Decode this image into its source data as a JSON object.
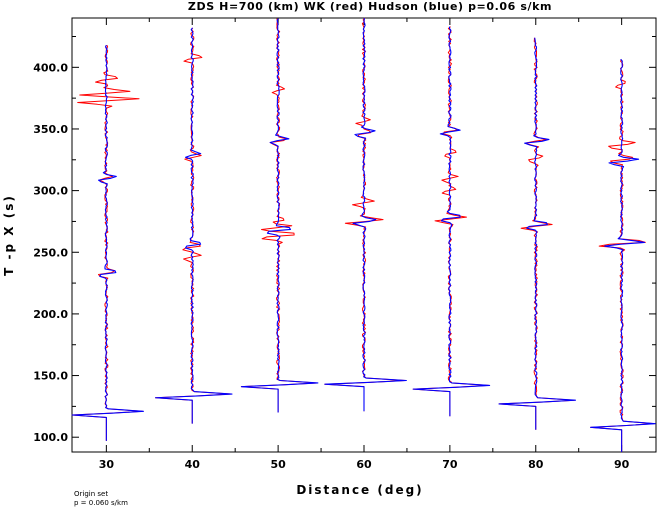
{
  "chart_data": {
    "type": "line",
    "title": "ZDS H=700 (km) WK (red) Hudson (blue) p=0.06 s/km",
    "xlabel": "Distance (deg)",
    "ylabel": "T -p X (s)",
    "xlim": [
      26,
      94
    ],
    "ylim": [
      88,
      440
    ],
    "x_ticks": [
      "30",
      "40",
      "50",
      "60",
      "70",
      "80",
      "90"
    ],
    "y_ticks": [
      "100.0",
      "150.0",
      "200.0",
      "250.0",
      "300.0",
      "350.0",
      "400.0"
    ],
    "series": [
      {
        "name": "WK",
        "color": "#ff0000"
      },
      {
        "name": "Hudson",
        "color": "#0000ff"
      }
    ],
    "traces": [
      {
        "distance": 30,
        "t_start": 97,
        "t_main": 120,
        "t_end": 418,
        "amp_main": 4.2,
        "red_pulses": [
          [
            233,
            1.2
          ],
          [
            310,
            1.0
          ],
          [
            373,
            4.2
          ],
          [
            379,
            3.5
          ],
          [
            390,
            1.8
          ],
          [
            411,
            0.4
          ]
        ],
        "blue_pulses": [
          [
            233,
            1.5
          ],
          [
            310,
            1.4
          ]
        ]
      },
      {
        "distance": 40,
        "t_start": 111,
        "t_main": 134,
        "t_end": 432,
        "amp_main": 4.5,
        "red_pulses": [
          [
            246,
            1.5
          ],
          [
            254,
            1.5
          ],
          [
            327,
            1.2
          ],
          [
            407,
            1.4
          ]
        ],
        "blue_pulses": [
          [
            256,
            1.5
          ],
          [
            329,
            1.2
          ]
        ]
      },
      {
        "distance": 50,
        "t_start": 120,
        "t_main": 143,
        "t_end": 440,
        "amp_main": 4.5,
        "red_pulses": [
          [
            263,
            2.8
          ],
          [
            270,
            2.3
          ],
          [
            340,
            1.2
          ],
          [
            381,
            1.0
          ],
          [
            275,
            1.0
          ]
        ],
        "blue_pulses": [
          [
            268,
            2.2
          ],
          [
            341,
            1.5
          ]
        ]
      },
      {
        "distance": 60,
        "t_start": 121,
        "t_main": 145,
        "t_end": 440,
        "amp_main": 4.8,
        "red_pulses": [
          [
            275,
            2.7
          ],
          [
            290,
            1.5
          ],
          [
            346,
            1.2
          ],
          [
            356,
            1.0
          ]
        ],
        "blue_pulses": [
          [
            275,
            1.8
          ],
          [
            347,
            1.5
          ]
        ]
      },
      {
        "distance": 70,
        "t_start": 117,
        "t_main": 141,
        "t_end": 434,
        "amp_main": 4.5,
        "red_pulses": [
          [
            277,
            2.4
          ],
          [
            300,
            1.0
          ],
          [
            310,
            1.0
          ],
          [
            348,
            1.2
          ],
          [
            330,
            1.0
          ]
        ],
        "blue_pulses": [
          [
            278,
            1.8
          ],
          [
            348,
            1.5
          ]
        ]
      },
      {
        "distance": 80,
        "t_start": 106,
        "t_main": 129,
        "t_end": 425,
        "amp_main": 4.5,
        "red_pulses": [
          [
            271,
            2.3
          ],
          [
            326,
            1.2
          ],
          [
            340,
            1.5
          ]
        ],
        "blue_pulses": [
          [
            272,
            1.8
          ],
          [
            340,
            1.8
          ]
        ]
      },
      {
        "distance": 90,
        "t_start": 88,
        "t_main": 110,
        "t_end": 407,
        "amp_main": 3.8,
        "red_pulses": [
          [
            257,
            3.8
          ],
          [
            325,
            2.0
          ],
          [
            337,
            2.0
          ],
          [
            386,
            0.8
          ]
        ],
        "blue_pulses": [
          [
            257,
            3.0
          ],
          [
            324,
            2.3
          ]
        ]
      }
    ]
  },
  "footer": {
    "line1": "Origin set",
    "line2": "p = 0.060 s/km"
  }
}
